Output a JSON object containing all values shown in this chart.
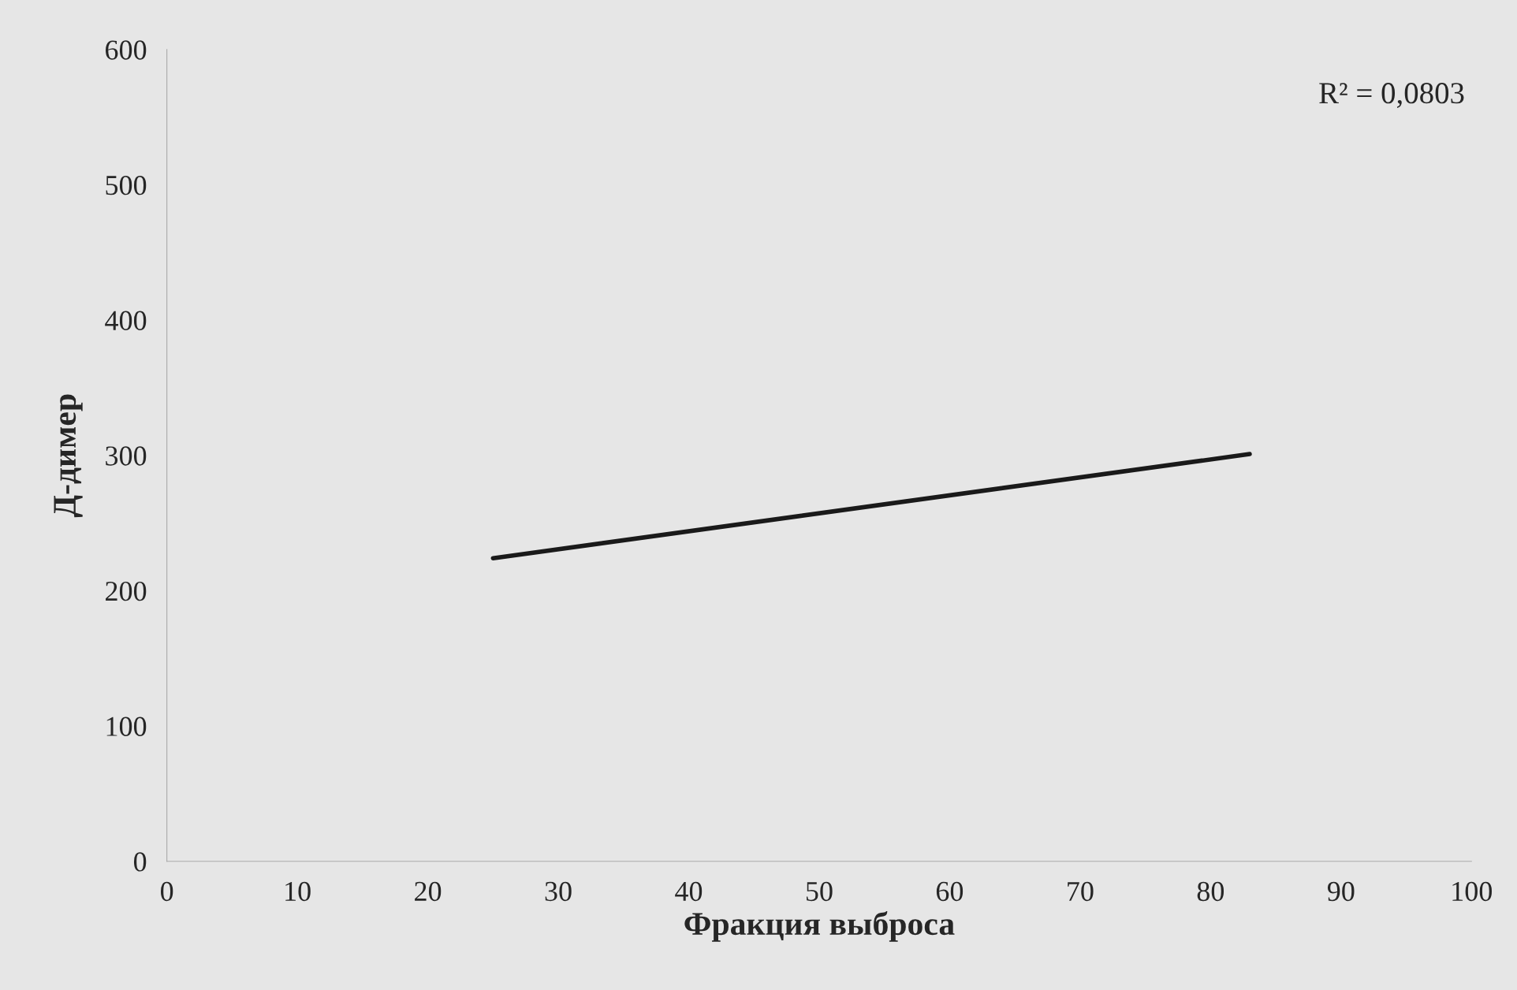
{
  "chart_data": {
    "type": "line",
    "xlabel": "Фракция выброса",
    "ylabel": "Д-димер",
    "x": [
      25,
      83
    ],
    "series": [
      {
        "color": "#1a1a1a",
        "values": [
          224,
          301
        ]
      }
    ],
    "xlim": [
      0,
      100
    ],
    "ylim": [
      0,
      600
    ],
    "xticks": [
      0,
      10,
      20,
      30,
      40,
      50,
      60,
      70,
      80,
      90,
      100
    ],
    "yticks": [
      0,
      100,
      200,
      300,
      400,
      500,
      600
    ],
    "annotations": [
      "R² = 0,0803"
    ]
  }
}
